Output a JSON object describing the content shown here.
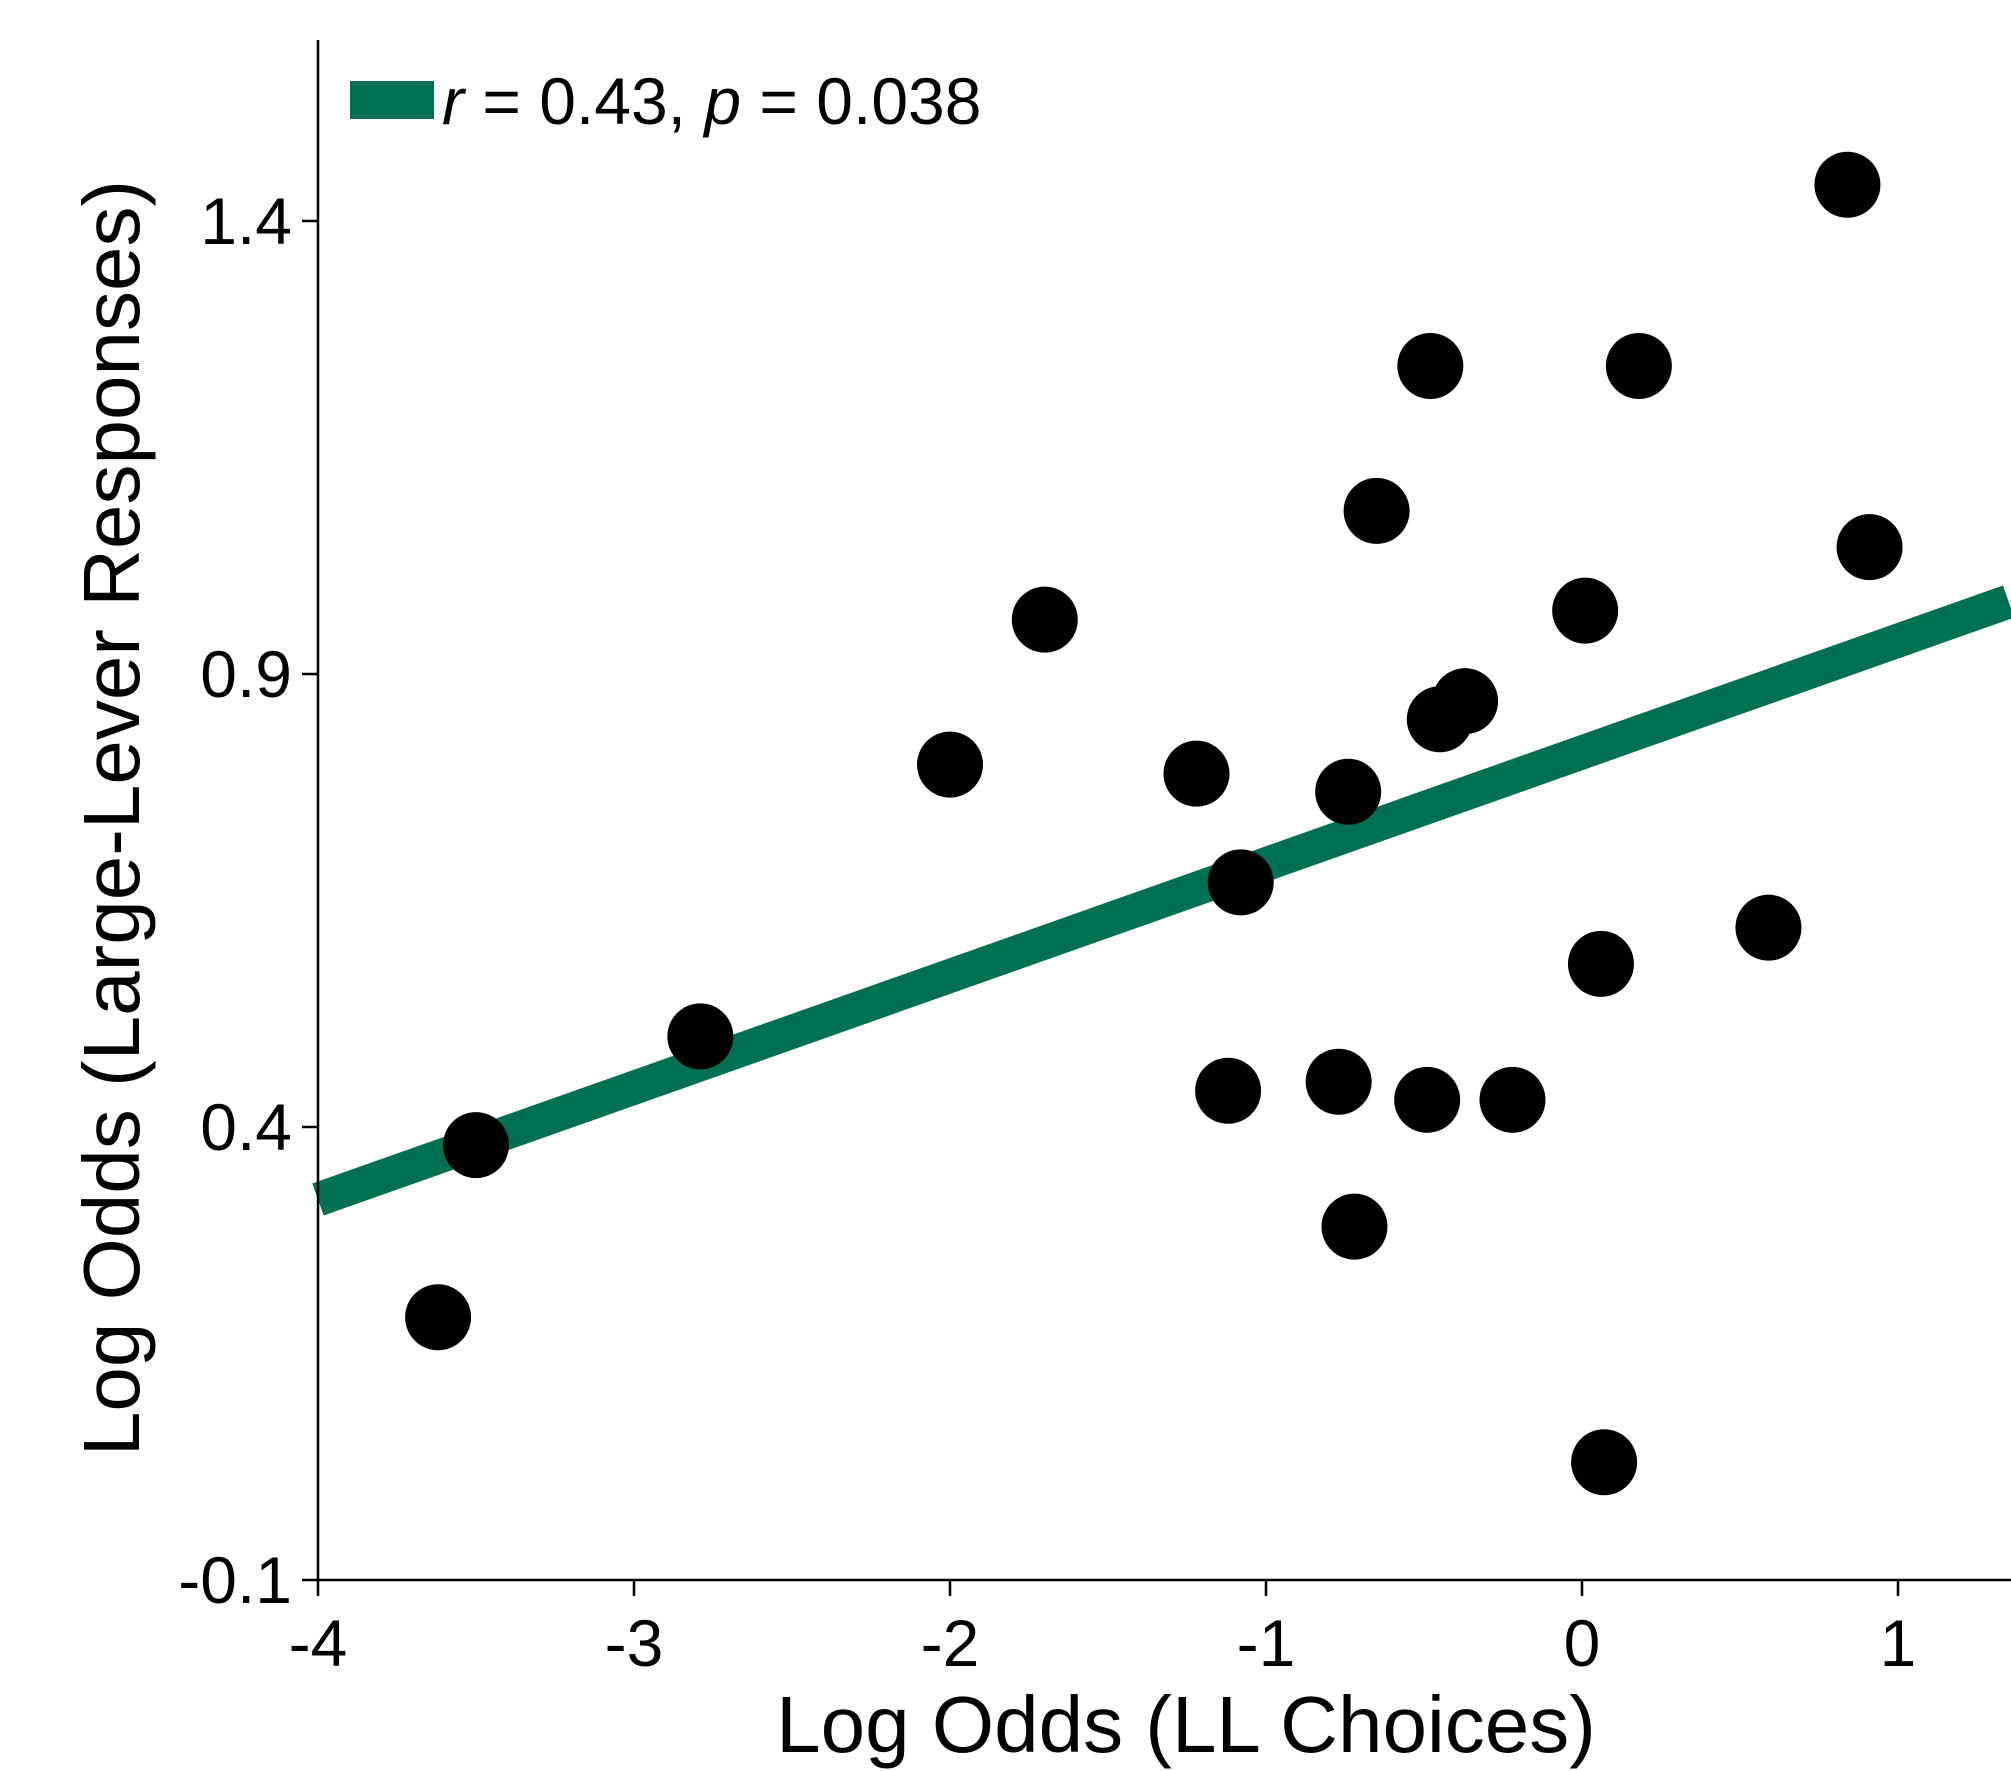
{
  "chart_data": {
    "type": "scatter",
    "title": "",
    "xlabel": "Log Odds (LL Choices)",
    "ylabel": "Log Odds (Large-Lever Responses)",
    "xlim": [
      -4,
      1.35
    ],
    "ylim": [
      -0.1,
      1.6
    ],
    "xticks": [
      -4,
      -3,
      -2,
      -1,
      0,
      1
    ],
    "xtick_labels": [
      "-4",
      "-3",
      "-2",
      "-1",
      "0",
      "1"
    ],
    "yticks": [
      -0.1,
      0.4,
      0.9,
      1.4
    ],
    "ytick_labels": [
      "-0.1",
      "0.4",
      "0.9",
      "1.4"
    ],
    "grid": false,
    "legend": {
      "placement": "top-left",
      "r_symbol": "r",
      "r_text": " = 0.43, ",
      "p_symbol": "p",
      "p_text": " = 0.038"
    },
    "fit_line": {
      "x": [
        -4,
        1.35
      ],
      "y": [
        0.32,
        0.98
      ],
      "color": "#007055"
    },
    "point_color": "#000000",
    "points": [
      {
        "x": -3.62,
        "y": 0.19
      },
      {
        "x": -3.5,
        "y": 0.38
      },
      {
        "x": -2.79,
        "y": 0.5
      },
      {
        "x": -2.0,
        "y": 0.8
      },
      {
        "x": -1.7,
        "y": 0.96
      },
      {
        "x": -1.22,
        "y": 0.79
      },
      {
        "x": -1.12,
        "y": 0.44
      },
      {
        "x": -1.08,
        "y": 0.67
      },
      {
        "x": -0.77,
        "y": 0.45
      },
      {
        "x": -0.74,
        "y": 0.77
      },
      {
        "x": -0.72,
        "y": 0.29
      },
      {
        "x": -0.65,
        "y": 1.08
      },
      {
        "x": -0.49,
        "y": 0.43
      },
      {
        "x": -0.48,
        "y": 1.24
      },
      {
        "x": -0.45,
        "y": 0.85
      },
      {
        "x": -0.37,
        "y": 0.87
      },
      {
        "x": -0.22,
        "y": 0.43
      },
      {
        "x": 0.01,
        "y": 0.97
      },
      {
        "x": 0.06,
        "y": 0.58
      },
      {
        "x": 0.07,
        "y": 0.03
      },
      {
        "x": 0.18,
        "y": 1.24
      },
      {
        "x": 0.59,
        "y": 0.62
      },
      {
        "x": 0.84,
        "y": 1.44
      },
      {
        "x": 0.91,
        "y": 1.04
      }
    ]
  }
}
